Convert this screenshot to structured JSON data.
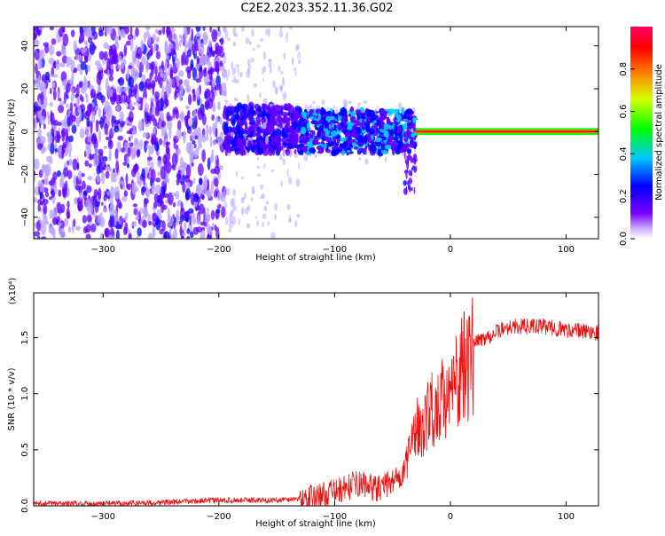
{
  "page": {
    "title": "C2E2.2023.352.11.36.G02"
  },
  "chart_data": [
    {
      "type": "heatmap",
      "title": "C2E2.2023.352.11.36.G02",
      "xlabel": "Height of straight line (km)",
      "ylabel": "Frequency (Hz)",
      "xlim": [
        -360,
        128
      ],
      "ylim": [
        -50,
        49
      ],
      "xticks": [
        -300,
        -200,
        -100,
        0,
        100
      ],
      "yticks": [
        -40,
        -20,
        0,
        20,
        40
      ],
      "colorbar": {
        "label": "Normalized spectral amplitude",
        "range": [
          0.0,
          1.0
        ],
        "ticks": [
          0.0,
          0.2,
          0.4,
          0.6,
          0.8
        ],
        "colormap": [
          "#ffffff",
          "#b8a0ff",
          "#6200ff",
          "#0000ff",
          "#00c8ff",
          "#00ff00",
          "#d8ff00",
          "#ff8000",
          "#ff0000",
          "#ff0060"
        ]
      },
      "regions": [
        {
          "x_range": [
            -360,
            -195
          ],
          "freq_range": [
            -50,
            49
          ],
          "amplitude": 0.15,
          "note": "broadband noise"
        },
        {
          "x_range": [
            -195,
            -130
          ],
          "freq_range": [
            -10,
            12
          ],
          "amplitude": 0.3
        },
        {
          "x_range": [
            -130,
            -30
          ],
          "freq_range": [
            -12,
            12
          ],
          "amplitude": 0.35
        },
        {
          "x_range": [
            -30,
            128
          ],
          "freq_range": [
            -1.5,
            1.5
          ],
          "amplitude": 0.9,
          "note": "narrow carrier line"
        }
      ],
      "grid": false
    },
    {
      "type": "line",
      "xlabel": "Height of straight line (km)",
      "ylabel": "SNR (10 * v/v)",
      "multiplier": "(x10⁴)",
      "xlim": [
        -360,
        128
      ],
      "ylim": [
        0.0,
        1.9
      ],
      "xticks": [
        -300,
        -200,
        -100,
        0,
        100
      ],
      "yticks": [
        0.0,
        0.5,
        1.0,
        1.5
      ],
      "series": [
        {
          "color": "#ee1111",
          "x": [
            -360,
            -300,
            -250,
            -200,
            -150,
            -120,
            -100,
            -80,
            -60,
            -40,
            -30,
            -20,
            -10,
            0,
            10,
            20,
            30,
            50,
            80,
            100,
            128
          ],
          "y": [
            0.02,
            0.02,
            0.03,
            0.05,
            0.05,
            0.07,
            0.12,
            0.2,
            0.15,
            0.3,
            0.7,
            0.85,
            0.95,
            1.1,
            1.25,
            1.45,
            1.5,
            1.6,
            1.6,
            1.57,
            1.55
          ]
        }
      ],
      "grid": false
    }
  ]
}
